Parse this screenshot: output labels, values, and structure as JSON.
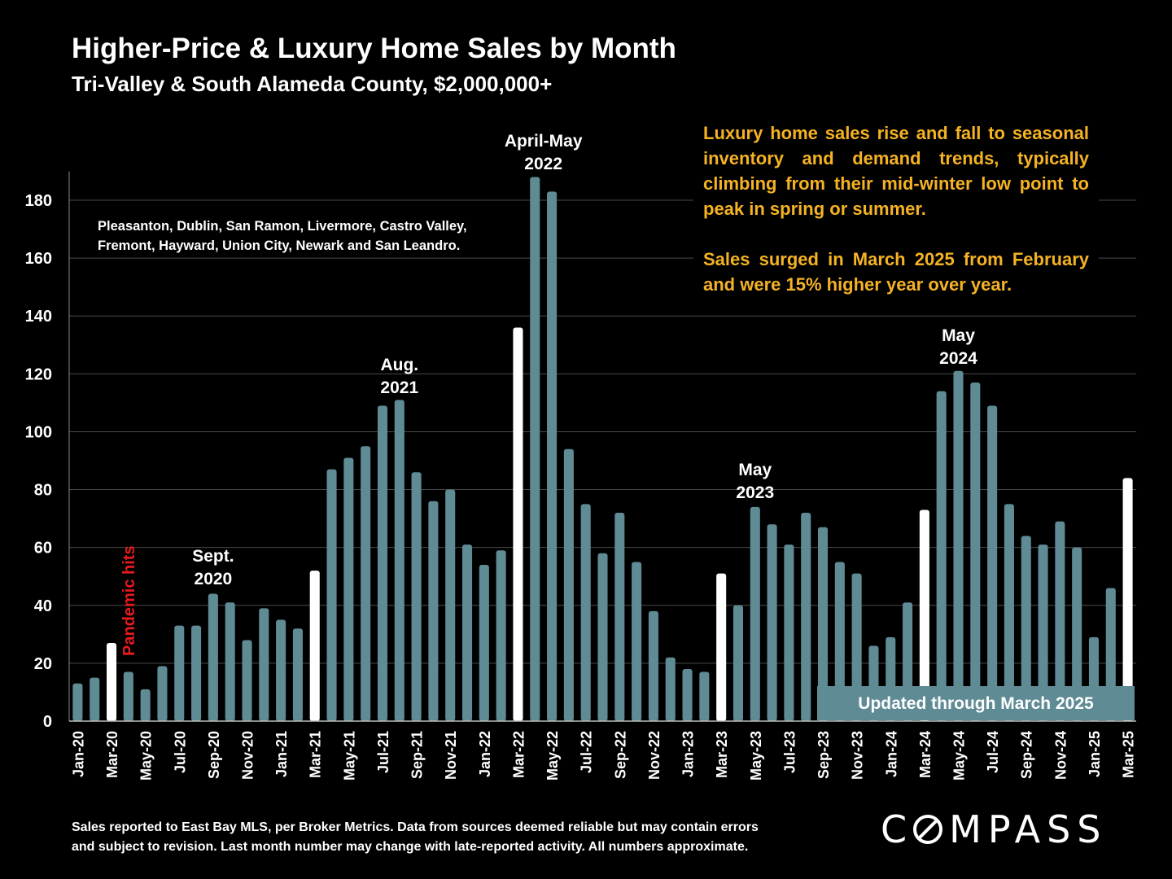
{
  "header": {
    "title": "Higher-Price & Luxury Home Sales by Month",
    "subtitle": "Tri-Valley & South Alameda County, $2,000,000+"
  },
  "annotations": {
    "commentary": [
      "Luxury home sales rise and fall to seasonal inventory and demand trends, typically climbing from their mid-winter low point to peak in spring or summer.",
      "Sales surged in March 2025 from February and were 15% higher year over year."
    ],
    "cities_line1": "Pleasanton, Dublin, San Ramon, Livermore, Castro Valley,",
    "cities_line2": "Fremont, Hayward, Union City, Newark and San Leandro.",
    "updated": "Updated through March 2025",
    "pandemic": "Pandemic hits",
    "peak_labels": [
      {
        "line1": "Sept.",
        "line2": "2020",
        "index": 8
      },
      {
        "line1": "Aug.",
        "line2": "2021",
        "index": 19
      },
      {
        "line1": "April-May",
        "line2": "2022",
        "index": 27
      },
      {
        "line1": "May",
        "line2": "2023",
        "index": 40
      },
      {
        "line1": "May",
        "line2": "2024",
        "index": 52
      }
    ]
  },
  "footer": {
    "line1": "Sales reported to East Bay MLS, per Broker Metrics. Data from sources deemed reliable but may contain errors",
    "line2": "and subject to revision. Last month number may change with late-reported activity. All numbers approximate.",
    "logo": "COMPASS"
  },
  "colors": {
    "bar": "#5f8b95",
    "highlight": "#ffffff",
    "accent": "#f5b324",
    "pandemic": "#e8191f"
  },
  "chart_data": {
    "type": "bar",
    "title": "Higher-Price & Luxury Home Sales by Month",
    "ylim": [
      0,
      190
    ],
    "yticks": [
      0,
      20,
      40,
      60,
      80,
      100,
      120,
      140,
      160,
      180
    ],
    "grid": true,
    "categories": [
      "Jan-20",
      "Feb-20",
      "Mar-20",
      "Apr-20",
      "May-20",
      "Jun-20",
      "Jul-20",
      "Aug-20",
      "Sep-20",
      "Oct-20",
      "Nov-20",
      "Dec-20",
      "Jan-21",
      "Feb-21",
      "Mar-21",
      "Apr-21",
      "May-21",
      "Jun-21",
      "Jul-21",
      "Aug-21",
      "Sep-21",
      "Oct-21",
      "Nov-21",
      "Dec-21",
      "Jan-22",
      "Feb-22",
      "Mar-22",
      "Apr-22",
      "May-22",
      "Jun-22",
      "Jul-22",
      "Aug-22",
      "Sep-22",
      "Oct-22",
      "Nov-22",
      "Dec-22",
      "Jan-23",
      "Feb-23",
      "Mar-23",
      "Apr-23",
      "May-23",
      "Jun-23",
      "Jul-23",
      "Aug-23",
      "Sep-23",
      "Oct-23",
      "Nov-23",
      "Dec-23",
      "Jan-24",
      "Feb-24",
      "Mar-24",
      "Apr-24",
      "May-24",
      "Jun-24",
      "Jul-24",
      "Aug-24",
      "Sep-24",
      "Oct-24",
      "Nov-24",
      "Dec-24",
      "Jan-25",
      "Feb-25",
      "Mar-25"
    ],
    "values": [
      13,
      15,
      27,
      17,
      11,
      19,
      33,
      33,
      44,
      41,
      28,
      39,
      35,
      32,
      52,
      87,
      91,
      95,
      109,
      111,
      86,
      76,
      80,
      61,
      54,
      59,
      136,
      188,
      183,
      94,
      75,
      58,
      72,
      55,
      38,
      22,
      18,
      17,
      51,
      40,
      74,
      68,
      61,
      72,
      67,
      55,
      51,
      26,
      29,
      41,
      73,
      114,
      121,
      117,
      109,
      75,
      64,
      61,
      69,
      60,
      29,
      46,
      84
    ],
    "highlighted": [
      "Mar-20",
      "Mar-21",
      "Mar-22",
      "Mar-23",
      "Mar-24",
      "Mar-25"
    ],
    "tick_labels": [
      "Jan-20",
      "Mar-20",
      "May-20",
      "Jul-20",
      "Sep-20",
      "Nov-20",
      "Jan-21",
      "Mar-21",
      "May-21",
      "Jul-21",
      "Sep-21",
      "Nov-21",
      "Jan-22",
      "Mar-22",
      "May-22",
      "Jul-22",
      "Sep-22",
      "Nov-22",
      "Jan-23",
      "Mar-23",
      "May-23",
      "Jul-23",
      "Sep-23",
      "Nov-23",
      "Jan-24",
      "Mar-24",
      "May-24",
      "Jul-24",
      "Sep-24",
      "Nov-24",
      "Jan-25",
      "Mar-25"
    ]
  }
}
